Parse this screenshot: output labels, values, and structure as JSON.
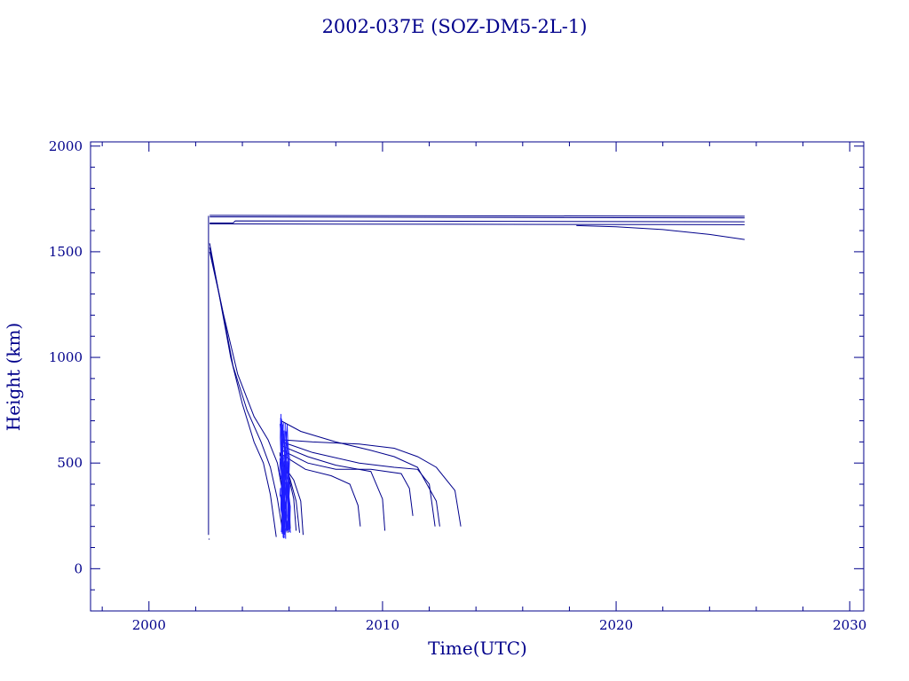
{
  "chart_data": {
    "type": "line",
    "title": "2002-037E (SOZ-DM5-2L-1)",
    "xlabel": "Time(UTC)",
    "ylabel": "Height (km)",
    "xlim": [
      1997.5,
      2030.6
    ],
    "ylim": [
      -200,
      2020
    ],
    "xticks": [
      2000,
      2010,
      2020,
      2030
    ],
    "yticks": [
      0,
      500,
      1000,
      1500,
      2000
    ],
    "x_tick_labels": [
      "2000",
      "2010",
      "2020",
      "2030"
    ],
    "y_tick_labels": [
      "0",
      "500",
      "1000",
      "1500",
      "2000"
    ],
    "grid": false,
    "legend": "none",
    "colors": {
      "axis": "#00008B",
      "series_dark": "#00008B",
      "series_bright": "#1E1EFF"
    },
    "series": [
      {
        "x": [
          2002.6,
          2025.5
        ],
        "y": [
          1672,
          1668
        ]
      },
      {
        "x": [
          2002.6,
          2025.5
        ],
        "y": [
          1665,
          1660
        ]
      },
      {
        "x": [
          2002.6,
          2003.6,
          2003.7,
          2025.5
        ],
        "y": [
          1636,
          1636,
          1646,
          1642
        ]
      },
      {
        "x": [
          2002.6,
          2025.5
        ],
        "y": [
          1632,
          1628
        ]
      },
      {
        "x": [
          2018.3,
          2020.0,
          2022.0,
          2024.0,
          2025.5
        ],
        "y": [
          1624,
          1618,
          1605,
          1582,
          1558
        ]
      },
      {
        "x": [
          2002.55,
          2002.55
        ],
        "y": [
          1670,
          160
        ]
      },
      {
        "x": [
          2002.55,
          2002.6
        ],
        "y": [
          140,
          140
        ]
      },
      {
        "x": [
          2002.6,
          2003.0,
          2003.5,
          2004.0,
          2004.5,
          2004.9,
          2005.2,
          2005.45
        ],
        "y": [
          1540,
          1300,
          1000,
          780,
          600,
          500,
          350,
          150
        ]
      },
      {
        "x": [
          2002.6,
          2003.1,
          2003.6,
          2004.2,
          2004.8,
          2005.2,
          2005.5,
          2005.75
        ],
        "y": [
          1520,
          1250,
          960,
          750,
          600,
          480,
          330,
          160
        ]
      },
      {
        "x": [
          2002.6,
          2003.2,
          2003.8,
          2004.5,
          2005.1,
          2005.5,
          2005.75,
          2005.95
        ],
        "y": [
          1500,
          1200,
          920,
          720,
          610,
          500,
          340,
          170
        ]
      },
      {
        "x": [
          2005.65,
          2006.5,
          2008.0,
          2009.5,
          2010.5,
          2011.5,
          2012.3,
          2012.45
        ],
        "y": [
          700,
          650,
          600,
          560,
          530,
          480,
          320,
          200
        ]
      },
      {
        "x": [
          2005.7,
          2007.0,
          2009.0,
          2010.5,
          2011.5,
          2012.3,
          2013.1,
          2013.35
        ],
        "y": [
          610,
          600,
          590,
          570,
          530,
          480,
          370,
          200
        ]
      },
      {
        "x": [
          2005.7,
          2007.0,
          2009.0,
          2010.5,
          2011.5,
          2012.0,
          2012.25
        ],
        "y": [
          600,
          550,
          500,
          480,
          470,
          400,
          200
        ]
      },
      {
        "x": [
          2005.7,
          2006.8,
          2008.0,
          2009.5,
          2010.0,
          2010.1
        ],
        "y": [
          580,
          530,
          490,
          460,
          330,
          180
        ]
      },
      {
        "x": [
          2005.7,
          2006.8,
          2008.0,
          2009.5,
          2010.8,
          2011.15,
          2011.3
        ],
        "y": [
          560,
          500,
          470,
          470,
          450,
          380,
          250
        ]
      },
      {
        "x": [
          2005.7,
          2006.7,
          2007.8,
          2008.6,
          2008.95,
          2009.05
        ],
        "y": [
          540,
          470,
          440,
          400,
          300,
          200
        ]
      },
      {
        "x": [
          2005.7,
          2006.2,
          2006.5,
          2006.6
        ],
        "y": [
          500,
          420,
          320,
          160
        ]
      },
      {
        "x": [
          2005.6,
          2006.0,
          2006.3,
          2006.45
        ],
        "y": [
          520,
          440,
          320,
          170
        ]
      },
      {
        "x": [
          2005.6,
          2005.95,
          2006.2,
          2006.3
        ],
        "y": [
          540,
          450,
          330,
          180
        ]
      },
      {
        "x": [
          2005.6,
          2005.85,
          2006.0,
          2006.05
        ],
        "y": [
          550,
          430,
          300,
          190
        ]
      }
    ],
    "spike_cluster": {
      "x_center": 2005.8,
      "x_spread": 0.35,
      "y_top": 810,
      "y_bottom": 200,
      "count": 34
    }
  }
}
